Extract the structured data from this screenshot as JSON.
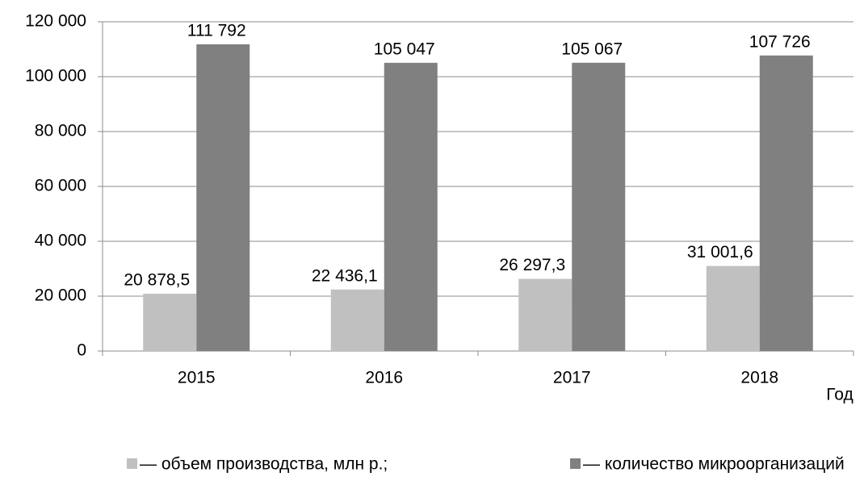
{
  "chart_data": {
    "type": "bar",
    "categories": [
      "2015",
      "2016",
      "2017",
      "2018"
    ],
    "series": [
      {
        "name": "— объем производства, млн р.;",
        "color": "#c0c0c0",
        "values": [
          20878.5,
          22436.1,
          26297.3,
          31001.6
        ],
        "value_labels": [
          "20 878,5",
          "22 436,1",
          "26 297,3",
          "31 001,6"
        ]
      },
      {
        "name": "— количество микроорганизаций",
        "color": "#808080",
        "values": [
          111792,
          105047,
          105067,
          107726
        ],
        "value_labels": [
          "111 792",
          "105 047",
          "105 067",
          "107 726"
        ]
      }
    ],
    "x_label": "Год",
    "ylim": [
      0,
      120000
    ],
    "yticks": [
      0,
      {
        "value": 20000,
        "label": "20 000"
      },
      {
        "value": 40000,
        "label": "40 000"
      },
      {
        "value": 60000,
        "label": "60 000"
      },
      {
        "value": 80000,
        "label": "80 000"
      },
      {
        "value": 100000,
        "label": "100 000"
      },
      {
        "value": 120000,
        "label": "120 000"
      }
    ],
    "grid": true
  }
}
